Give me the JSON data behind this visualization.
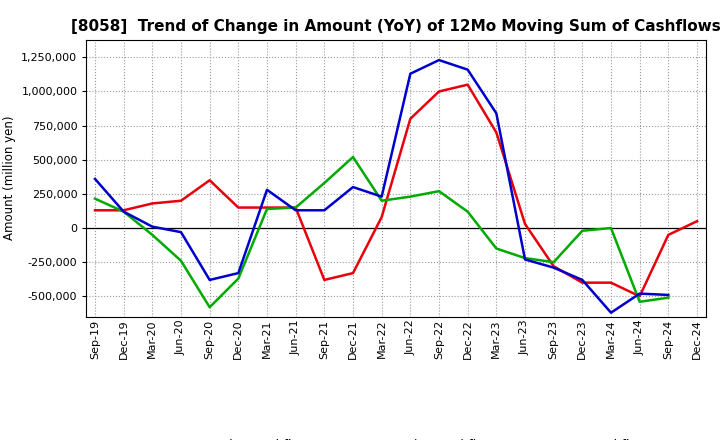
{
  "title": "[8058]  Trend of Change in Amount (YoY) of 12Mo Moving Sum of Cashflows",
  "ylabel": "Amount (million yen)",
  "x_labels": [
    "Sep-19",
    "Dec-19",
    "Mar-20",
    "Jun-20",
    "Sep-20",
    "Dec-20",
    "Mar-21",
    "Jun-21",
    "Sep-21",
    "Dec-21",
    "Mar-22",
    "Jun-22",
    "Sep-22",
    "Dec-22",
    "Mar-23",
    "Jun-23",
    "Sep-23",
    "Dec-23",
    "Mar-24",
    "Jun-24",
    "Sep-24",
    "Dec-24"
  ],
  "operating": [
    130000,
    130000,
    180000,
    200000,
    350000,
    150000,
    150000,
    150000,
    -380000,
    -330000,
    80000,
    800000,
    1000000,
    1050000,
    700000,
    30000,
    -280000,
    -400000,
    -400000,
    -500000,
    -50000,
    50000
  ],
  "investing": [
    215000,
    120000,
    -50000,
    -240000,
    -580000,
    -370000,
    140000,
    150000,
    330000,
    520000,
    200000,
    230000,
    270000,
    120000,
    -150000,
    -220000,
    -250000,
    -20000,
    0,
    -540000,
    -510000,
    null
  ],
  "free": [
    360000,
    120000,
    10000,
    -30000,
    -380000,
    -330000,
    280000,
    130000,
    130000,
    300000,
    230000,
    1130000,
    1230000,
    1160000,
    840000,
    -230000,
    -290000,
    -380000,
    -620000,
    -480000,
    -490000,
    null
  ],
  "operating_color": "#e8000d",
  "investing_color": "#00aa00",
  "free_color": "#0000cc",
  "background_color": "#ffffff",
  "grid_color": "#999999",
  "ylim": [
    -650000,
    1380000
  ],
  "yticks": [
    -500000,
    -250000,
    0,
    250000,
    500000,
    750000,
    1000000,
    1250000
  ],
  "title_fontsize": 11,
  "axis_label_fontsize": 8.5,
  "tick_fontsize": 8
}
